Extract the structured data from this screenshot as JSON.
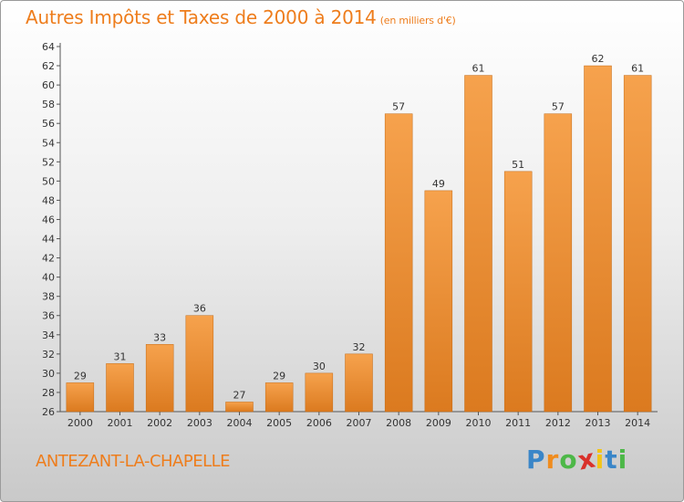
{
  "title": "Autres Impôts et Taxes de 2000 à 2014",
  "unit_note": "(en milliers d'€)",
  "commune": "ANTEZANT-LA-CHAPELLE",
  "logo": {
    "letters": [
      "P",
      "r",
      "o",
      "x",
      "i",
      "t",
      "i"
    ],
    "colors": [
      "#3a86c8",
      "#f08c1e",
      "#4db848",
      "#d9312b",
      "#f3c417",
      "#3a86c8",
      "#4db848"
    ]
  },
  "colors": {
    "bar_light": "#f6a24d",
    "bar_dark": "#db7a1f",
    "accent": "#ee7d1c"
  },
  "chart_data": {
    "type": "bar",
    "title": "Autres Impôts et Taxes de 2000 à 2014",
    "categories": [
      "2000",
      "2001",
      "2002",
      "2003",
      "2004",
      "2005",
      "2006",
      "2007",
      "2008",
      "2009",
      "2010",
      "2011",
      "2012",
      "2013",
      "2014"
    ],
    "values": [
      29,
      31,
      33,
      36,
      27,
      29,
      30,
      32,
      57,
      49,
      61,
      51,
      57,
      62,
      61
    ],
    "ylim": [
      26,
      64
    ],
    "yticks": [
      26,
      28,
      30,
      32,
      34,
      36,
      38,
      40,
      42,
      44,
      46,
      48,
      50,
      52,
      54,
      56,
      58,
      60,
      62,
      64
    ],
    "grid": false,
    "legend": "none"
  }
}
